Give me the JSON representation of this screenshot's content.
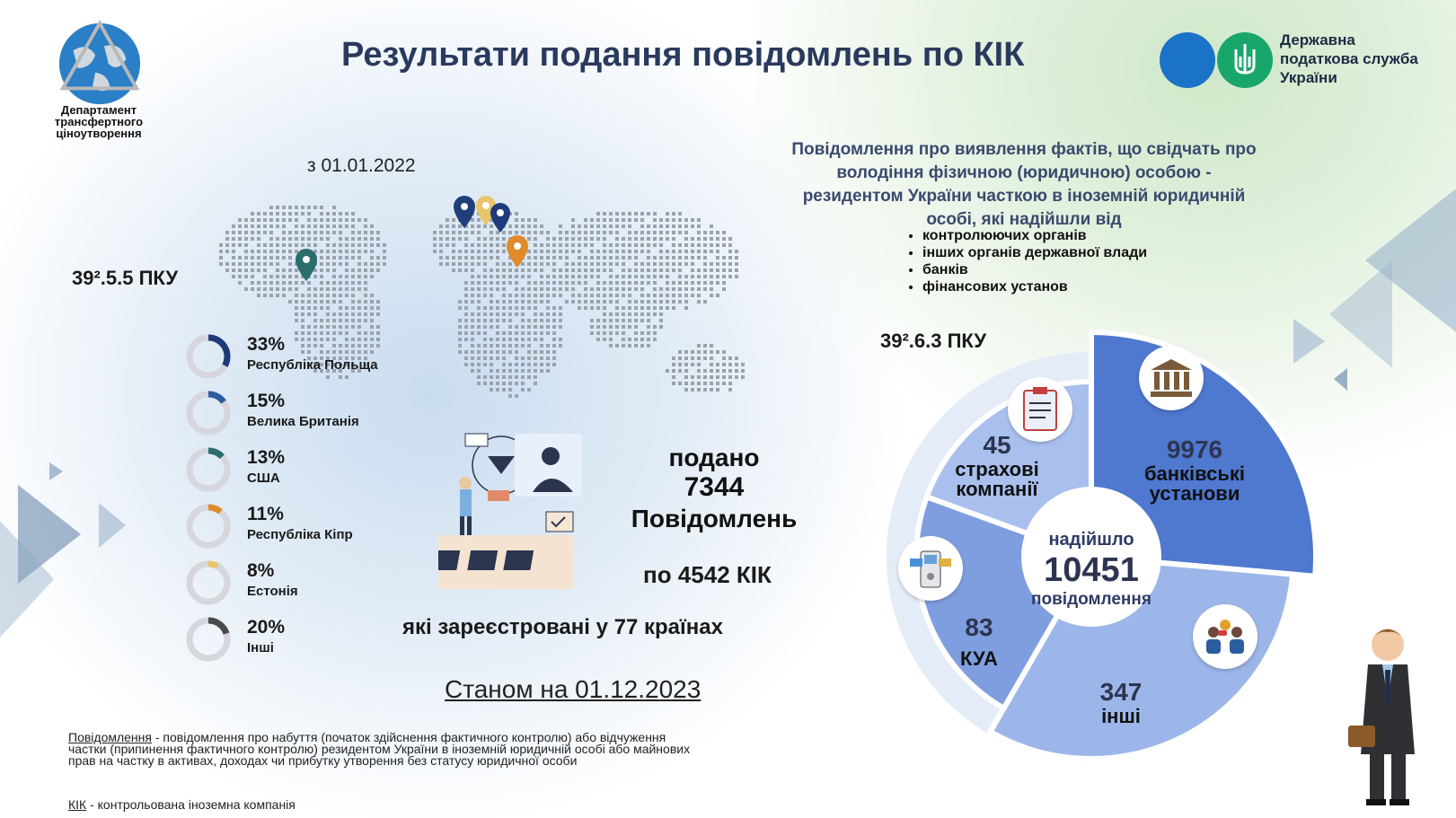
{
  "header": {
    "department_name": "Департамент трансфертного ціноутворення",
    "title": "Результати подання повідомлень по КІК",
    "agency_name": "Державна податкова служба України"
  },
  "left": {
    "since": "з 01.01.2022",
    "article": "39².5.5 ПКУ",
    "countries": [
      {
        "pct": "33%",
        "name": "Республіка Польща",
        "value": 33,
        "color": "#1f3a7a"
      },
      {
        "pct": "15%",
        "name": "Велика Британія",
        "value": 15,
        "color": "#2b5da0"
      },
      {
        "pct": "13%",
        "name": "США",
        "value": 13,
        "color": "#2a6d6a"
      },
      {
        "pct": "11%",
        "name": "Республіка Кіпр",
        "value": 11,
        "color": "#e08a2a"
      },
      {
        "pct": "8%",
        "name": "Естонія",
        "value": 8,
        "color": "#e8c56a"
      },
      {
        "pct": "20%",
        "name": "Інші",
        "value": 20,
        "color": "#4a4a4a"
      }
    ],
    "submitted_line1": "подано",
    "submitted_count": "7344",
    "submitted_line3": "Повідомлень",
    "per_kik": "по 4542 КІК",
    "registered": "які зареєстровані у 77 країнах",
    "as_of": "Станом на 01.12.2023",
    "note_term": "Повідомлення",
    "note_text": " - повідомлення про набуття (початок здійснення фактичного контролю) або відчуження частки (припинення фактичного контролю) резидентом України в іноземній юридичній особі або майнових прав на частку в активах, доходах чи прибутку утворення без статусу юридичної особи",
    "kik_term": "КІК",
    "kik_text": " - контрольована іноземна компанія"
  },
  "right": {
    "heading": "Повідомлення про виявлення фактів, що свідчать про володіння фізичною (юридичною) особою - резидентом України часткою в іноземній юридичній особі, які надійшли від",
    "bullets": [
      "контролюючих органів",
      "інших органів державної влади",
      "банків",
      "фінансових установ"
    ],
    "article": "39².6.3 ПКУ",
    "center_line1": "надійшло",
    "center_total": "10451",
    "center_line3": "повідомлення"
  },
  "chart_data": {
    "type": "pie",
    "total": 10451,
    "slices": [
      {
        "label": "банківські установи",
        "value": 9976,
        "color": "#4f78cf"
      },
      {
        "label": "інші",
        "value": 347,
        "color": "#9db6ea"
      },
      {
        "label": "КУА",
        "value": 83,
        "color": "#7f9ee0"
      },
      {
        "label": "страхові компанії",
        "value": 45,
        "color": "#a9c0ee"
      }
    ]
  },
  "icons": {
    "dept_logo": "globe-logo-icon",
    "agency_logo": "trident-emblem-icon",
    "bank": "bank-building-icon",
    "insurance": "clipboard-document-icon",
    "kua": "atm-terminal-icon",
    "others": "people-group-icon",
    "person": "businessman-illustration"
  }
}
